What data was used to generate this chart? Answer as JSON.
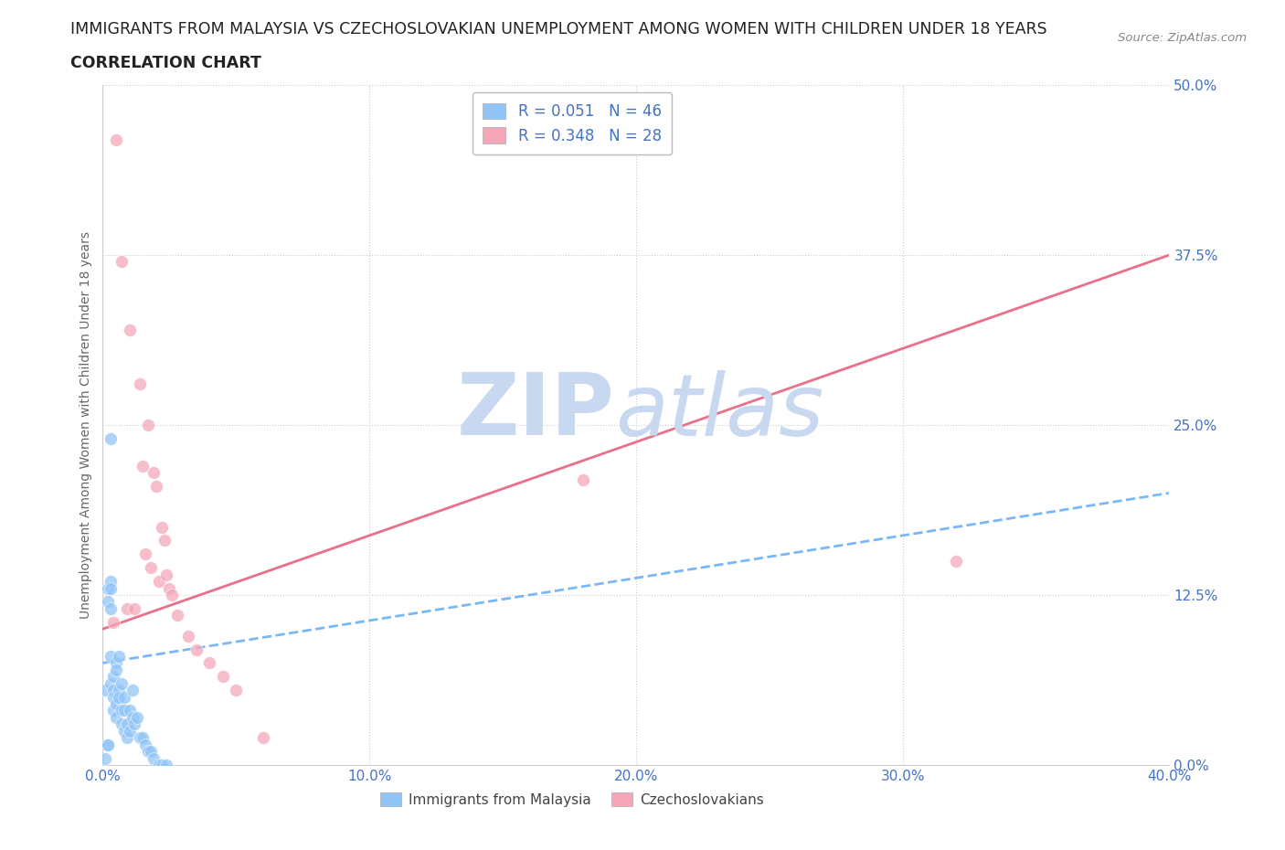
{
  "title_line1": "IMMIGRANTS FROM MALAYSIA VS CZECHOSLOVAKIAN UNEMPLOYMENT AMONG WOMEN WITH CHILDREN UNDER 18 YEARS",
  "title_line2": "CORRELATION CHART",
  "source": "Source: ZipAtlas.com",
  "ylabel": "Unemployment Among Women with Children Under 18 years",
  "xlim": [
    0.0,
    0.4
  ],
  "ylim": [
    0.0,
    0.5
  ],
  "xtick_labels": [
    "0.0%",
    "10.0%",
    "20.0%",
    "30.0%",
    "40.0%"
  ],
  "xtick_vals": [
    0.0,
    0.1,
    0.2,
    0.3,
    0.4
  ],
  "ytick_labels": [
    "0.0%",
    "12.5%",
    "25.0%",
    "37.5%",
    "50.0%"
  ],
  "ytick_vals": [
    0.0,
    0.125,
    0.25,
    0.375,
    0.5
  ],
  "r_malaysia": 0.051,
  "n_malaysia": 46,
  "r_czech": 0.348,
  "n_czech": 28,
  "color_malaysia": "#92c5f7",
  "color_czech": "#f4a7b9",
  "color_trendline_malaysia": "#7ab8f5",
  "color_trendline_czech": "#e8708a",
  "color_axis_labels": "#4472c4",
  "watermark_color": "#c8d8f0",
  "malaysia_x": [
    0.001,
    0.001,
    0.002,
    0.002,
    0.002,
    0.003,
    0.003,
    0.003,
    0.003,
    0.003,
    0.004,
    0.004,
    0.004,
    0.004,
    0.005,
    0.005,
    0.005,
    0.005,
    0.006,
    0.006,
    0.006,
    0.007,
    0.007,
    0.007,
    0.008,
    0.008,
    0.008,
    0.009,
    0.009,
    0.01,
    0.01,
    0.011,
    0.011,
    0.012,
    0.013,
    0.014,
    0.015,
    0.016,
    0.017,
    0.018,
    0.019,
    0.021,
    0.022,
    0.024,
    0.003,
    0.002
  ],
  "malaysia_y": [
    0.055,
    0.005,
    0.13,
    0.12,
    0.015,
    0.135,
    0.13,
    0.115,
    0.06,
    0.08,
    0.055,
    0.065,
    0.05,
    0.04,
    0.075,
    0.07,
    0.045,
    0.035,
    0.08,
    0.055,
    0.05,
    0.06,
    0.04,
    0.03,
    0.05,
    0.04,
    0.025,
    0.03,
    0.02,
    0.04,
    0.025,
    0.055,
    0.035,
    0.03,
    0.035,
    0.02,
    0.02,
    0.015,
    0.01,
    0.01,
    0.005,
    0.0,
    0.0,
    0.0,
    0.24,
    0.015
  ],
  "czech_x": [
    0.004,
    0.005,
    0.007,
    0.009,
    0.01,
    0.012,
    0.014,
    0.015,
    0.016,
    0.017,
    0.018,
    0.019,
    0.02,
    0.021,
    0.022,
    0.023,
    0.024,
    0.025,
    0.026,
    0.028,
    0.032,
    0.035,
    0.04,
    0.045,
    0.05,
    0.06,
    0.32,
    0.18
  ],
  "czech_y": [
    0.105,
    0.46,
    0.37,
    0.115,
    0.32,
    0.115,
    0.28,
    0.22,
    0.155,
    0.25,
    0.145,
    0.215,
    0.205,
    0.135,
    0.175,
    0.165,
    0.14,
    0.13,
    0.125,
    0.11,
    0.095,
    0.085,
    0.075,
    0.065,
    0.055,
    0.02,
    0.15,
    0.21
  ],
  "grid_color": "#cccccc",
  "background_color": "#ffffff"
}
